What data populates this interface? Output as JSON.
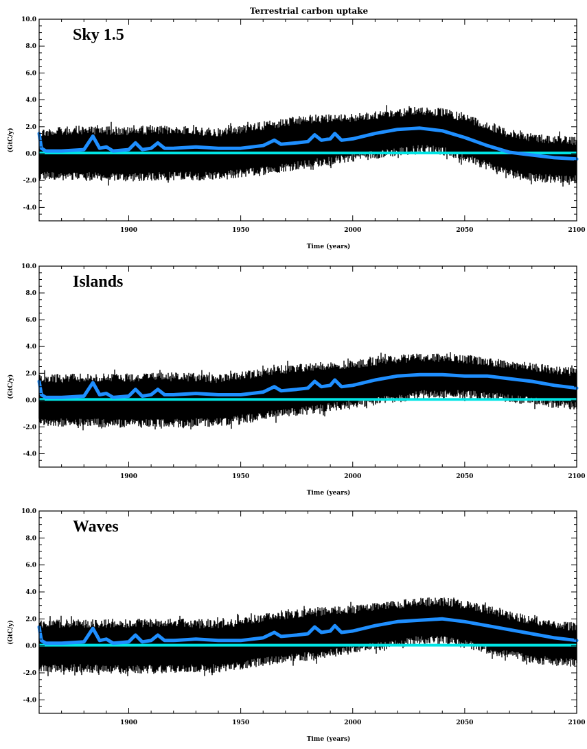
{
  "figure": {
    "title": "Terrestrial carbon uptake",
    "colors": {
      "noise": "#000000",
      "mean_line": "#1f8fff",
      "zero_line": "#00e5e5",
      "frame": "#000000"
    }
  },
  "chart_data": [
    {
      "type": "line",
      "panel_label": "Sky 1.5",
      "xlabel": "Time (years)",
      "ylabel": "(GtC/y)",
      "xlim": [
        1860,
        2100
      ],
      "ylim": [
        -5,
        10
      ],
      "x_ticks": [
        1900,
        1950,
        2000,
        2050,
        2100
      ],
      "y_ticks": [
        -4.0,
        -2.0,
        0.0,
        2.0,
        4.0,
        6.0,
        8.0,
        10.0
      ],
      "y_tick_labels": [
        "-4.0",
        "-2.0",
        "0.0",
        "2.0",
        "4.0",
        "6.0",
        "8.0",
        "10.0"
      ],
      "series": [
        {
          "style": "dense-noise",
          "color": "#000000",
          "envelope_x": [
            1860,
            1880,
            1900,
            1920,
            1940,
            1960,
            1980,
            2000,
            2020,
            2030,
            2040,
            2050,
            2060,
            2070,
            2080,
            2090,
            2100
          ],
          "envelope_upper": [
            1.9,
            2.1,
            2.0,
            2.1,
            1.9,
            2.4,
            2.9,
            3.0,
            3.4,
            3.5,
            3.4,
            3.0,
            2.4,
            1.8,
            1.5,
            1.4,
            1.3
          ],
          "envelope_lower": [
            -2.0,
            -2.0,
            -2.1,
            -2.0,
            -2.0,
            -1.6,
            -1.1,
            -0.6,
            -0.2,
            0.0,
            -0.1,
            -0.6,
            -1.2,
            -1.8,
            -2.1,
            -2.2,
            -2.2
          ]
        },
        {
          "style": "smooth",
          "color": "#1f8fff",
          "x": [
            1860,
            1861,
            1863,
            1870,
            1880,
            1884,
            1887,
            1890,
            1893,
            1900,
            1903,
            1906,
            1910,
            1913,
            1916,
            1920,
            1930,
            1940,
            1950,
            1960,
            1965,
            1968,
            1975,
            1980,
            1983,
            1986,
            1990,
            1992,
            1995,
            2000,
            2010,
            2020,
            2030,
            2040,
            2050,
            2060,
            2070,
            2080,
            2090,
            2100
          ],
          "y": [
            1.5,
            0.4,
            0.2,
            0.2,
            0.3,
            1.3,
            0.4,
            0.5,
            0.2,
            0.3,
            0.8,
            0.3,
            0.4,
            0.8,
            0.4,
            0.4,
            0.5,
            0.4,
            0.4,
            0.6,
            1.0,
            0.7,
            0.8,
            0.9,
            1.4,
            1.0,
            1.1,
            1.5,
            1.0,
            1.1,
            1.5,
            1.8,
            1.9,
            1.7,
            1.2,
            0.6,
            0.1,
            -0.1,
            -0.3,
            -0.4
          ]
        },
        {
          "style": "flat",
          "color": "#00e5e5",
          "x": [
            1860,
            2100
          ],
          "y": [
            0.05,
            0.05
          ]
        }
      ]
    },
    {
      "type": "line",
      "panel_label": "Islands",
      "xlabel": "Time (years)",
      "ylabel": "(GtC/y)",
      "xlim": [
        1860,
        2100
      ],
      "ylim": [
        -5,
        10
      ],
      "x_ticks": [
        1900,
        1950,
        2000,
        2050,
        2100
      ],
      "y_ticks": [
        -4.0,
        -2.0,
        0.0,
        2.0,
        4.0,
        6.0,
        8.0,
        10.0
      ],
      "y_tick_labels": [
        "-4.0",
        "-2.0",
        "0.0",
        "2.0",
        "4.0",
        "6.0",
        "8.0",
        "10.0"
      ],
      "series": [
        {
          "style": "dense-noise",
          "color": "#000000",
          "envelope_x": [
            1860,
            1880,
            1900,
            1920,
            1940,
            1960,
            1980,
            2000,
            2020,
            2030,
            2040,
            2050,
            2060,
            2070,
            2080,
            2090,
            2100
          ],
          "envelope_upper": [
            1.9,
            2.0,
            2.0,
            2.1,
            1.9,
            2.4,
            2.8,
            3.0,
            3.4,
            3.5,
            3.5,
            3.4,
            3.2,
            3.0,
            2.8,
            2.6,
            2.4
          ],
          "envelope_lower": [
            -2.0,
            -2.0,
            -2.1,
            -2.0,
            -2.0,
            -1.5,
            -1.1,
            -0.6,
            -0.2,
            0.1,
            0.1,
            0.1,
            0.0,
            -0.2,
            -0.4,
            -0.6,
            -0.8
          ]
        },
        {
          "style": "smooth",
          "color": "#1f8fff",
          "x": [
            1860,
            1861,
            1863,
            1870,
            1880,
            1884,
            1887,
            1890,
            1893,
            1900,
            1903,
            1906,
            1910,
            1913,
            1916,
            1920,
            1930,
            1940,
            1950,
            1960,
            1965,
            1968,
            1975,
            1980,
            1983,
            1986,
            1990,
            1992,
            1995,
            2000,
            2010,
            2020,
            2030,
            2040,
            2050,
            2060,
            2070,
            2080,
            2090,
            2100
          ],
          "y": [
            1.4,
            0.4,
            0.2,
            0.2,
            0.3,
            1.3,
            0.4,
            0.5,
            0.2,
            0.3,
            0.8,
            0.3,
            0.4,
            0.8,
            0.4,
            0.4,
            0.5,
            0.4,
            0.4,
            0.6,
            1.0,
            0.7,
            0.8,
            0.9,
            1.4,
            1.0,
            1.1,
            1.5,
            1.0,
            1.1,
            1.5,
            1.8,
            1.9,
            1.9,
            1.8,
            1.8,
            1.6,
            1.4,
            1.1,
            0.9
          ]
        },
        {
          "style": "flat",
          "color": "#00e5e5",
          "x": [
            1860,
            2100
          ],
          "y": [
            0.05,
            0.05
          ]
        }
      ]
    },
    {
      "type": "line",
      "panel_label": "Waves",
      "xlabel": "Time (years)",
      "ylabel": "(GtC/y)",
      "xlim": [
        1860,
        2100
      ],
      "ylim": [
        -5,
        10
      ],
      "x_ticks": [
        1900,
        1950,
        2000,
        2050,
        2100
      ],
      "y_ticks": [
        -4.0,
        -2.0,
        0.0,
        2.0,
        4.0,
        6.0,
        8.0,
        10.0
      ],
      "y_tick_labels": [
        "-4.0",
        "-2.0",
        "0.0",
        "2.0",
        "4.0",
        "6.0",
        "8.0",
        "10.0"
      ],
      "series": [
        {
          "style": "dense-noise",
          "color": "#000000",
          "envelope_x": [
            1860,
            1880,
            1900,
            1920,
            1940,
            1960,
            1980,
            2000,
            2020,
            2030,
            2040,
            2050,
            2060,
            2070,
            2080,
            2090,
            2100
          ],
          "envelope_upper": [
            1.9,
            2.0,
            2.0,
            2.1,
            1.9,
            2.4,
            2.8,
            3.0,
            3.4,
            3.6,
            3.6,
            3.4,
            3.0,
            2.6,
            2.2,
            1.9,
            1.7
          ],
          "envelope_lower": [
            -2.0,
            -2.0,
            -2.1,
            -2.0,
            -2.0,
            -1.5,
            -1.1,
            -0.6,
            -0.2,
            0.1,
            0.1,
            -0.2,
            -0.6,
            -1.0,
            -1.3,
            -1.5,
            -1.6
          ]
        },
        {
          "style": "smooth",
          "color": "#1f8fff",
          "x": [
            1860,
            1861,
            1863,
            1870,
            1880,
            1884,
            1887,
            1890,
            1893,
            1900,
            1903,
            1906,
            1910,
            1913,
            1916,
            1920,
            1930,
            1940,
            1950,
            1960,
            1965,
            1968,
            1975,
            1980,
            1983,
            1986,
            1990,
            1992,
            1995,
            2000,
            2010,
            2020,
            2030,
            2040,
            2050,
            2060,
            2070,
            2080,
            2090,
            2100
          ],
          "y": [
            1.4,
            0.4,
            0.2,
            0.2,
            0.3,
            1.3,
            0.4,
            0.5,
            0.2,
            0.3,
            0.8,
            0.3,
            0.4,
            0.8,
            0.4,
            0.4,
            0.5,
            0.4,
            0.4,
            0.6,
            1.0,
            0.7,
            0.8,
            0.9,
            1.4,
            1.0,
            1.1,
            1.5,
            1.0,
            1.1,
            1.5,
            1.8,
            1.9,
            2.0,
            1.8,
            1.5,
            1.2,
            0.9,
            0.6,
            0.4
          ]
        },
        {
          "style": "flat",
          "color": "#00e5e5",
          "x": [
            1860,
            2100
          ],
          "y": [
            0.05,
            0.05
          ]
        }
      ]
    }
  ]
}
